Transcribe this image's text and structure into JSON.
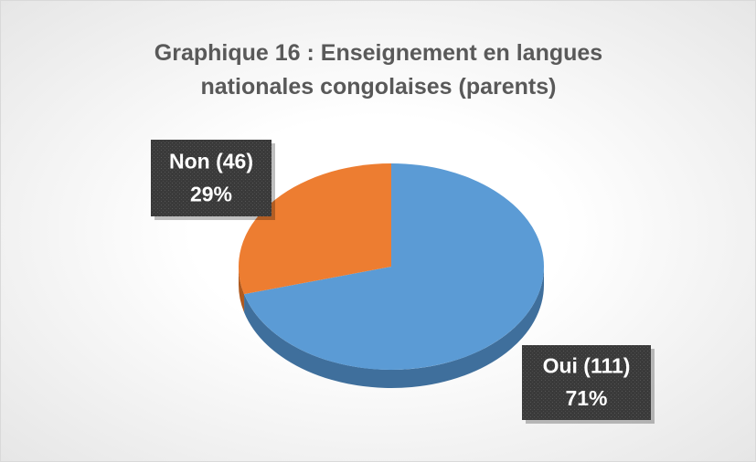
{
  "chart_data": {
    "type": "pie",
    "title": "Graphique 16 : Enseignement en langues nationales congolaises (parents)",
    "values": [
      111,
      46
    ],
    "value_labels": [
      "Oui (111)",
      "Non (46)"
    ],
    "percents": [
      71,
      29
    ],
    "percent_labels": [
      "71%",
      "29%"
    ],
    "colors": [
      "#5b9bd5",
      "#ed7d31"
    ],
    "side_colors": [
      "#3f6f9c",
      "#b05a1f"
    ]
  }
}
